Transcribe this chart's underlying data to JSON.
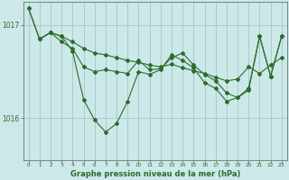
{
  "title": "Graphe pression niveau de la mer (hPa)",
  "background_color": "#cce8e8",
  "grid_color": "#aacccc",
  "line_color": "#2d6b2d",
  "x_min": -0.5,
  "x_max": 23.5,
  "y_min": 1015.55,
  "y_max": 1017.25,
  "yticks": [
    1016,
    1017
  ],
  "xticks": [
    0,
    1,
    2,
    3,
    4,
    5,
    6,
    7,
    8,
    9,
    10,
    11,
    12,
    13,
    14,
    15,
    16,
    17,
    18,
    19,
    20,
    21,
    22,
    23
  ],
  "series1_x": [
    0,
    1,
    2,
    3,
    4,
    5,
    6,
    7,
    8,
    9,
    10,
    11,
    12,
    13,
    14,
    15,
    16,
    17,
    18,
    19,
    20,
    21,
    22,
    23
  ],
  "series1_y": [
    1017.18,
    1016.85,
    1016.92,
    1016.88,
    1016.82,
    1016.75,
    1016.7,
    1016.68,
    1016.65,
    1016.62,
    1016.6,
    1016.57,
    1016.55,
    1016.58,
    1016.54,
    1016.51,
    1016.48,
    1016.44,
    1016.4,
    1016.42,
    1016.55,
    1016.48,
    1016.57,
    1016.65
  ],
  "series2_x": [
    0,
    1,
    2,
    3,
    4,
    5,
    6,
    7,
    8,
    9,
    10,
    11,
    12,
    13,
    14,
    15,
    16,
    17,
    18,
    19,
    20,
    21,
    22,
    23
  ],
  "series2_y": [
    1017.18,
    1016.85,
    1016.92,
    1016.88,
    1016.72,
    1016.2,
    1015.98,
    1015.85,
    1015.94,
    1016.18,
    1016.5,
    1016.47,
    1016.52,
    1016.68,
    1016.62,
    1016.54,
    1016.38,
    1016.32,
    1016.18,
    1016.22,
    1016.3,
    1016.88,
    1016.45,
    1016.88
  ],
  "series3_x": [
    1,
    2,
    3,
    4,
    5,
    6,
    7,
    8,
    9,
    10,
    11,
    12,
    13,
    14,
    15,
    16,
    17,
    18,
    19,
    20,
    21,
    22,
    23
  ],
  "series3_y": [
    1016.85,
    1016.92,
    1016.82,
    1016.75,
    1016.55,
    1016.5,
    1016.52,
    1016.5,
    1016.48,
    1016.62,
    1016.52,
    1016.53,
    1016.65,
    1016.7,
    1016.57,
    1016.47,
    1016.4,
    1016.27,
    1016.22,
    1016.32,
    1016.88,
    1016.45,
    1016.88
  ]
}
